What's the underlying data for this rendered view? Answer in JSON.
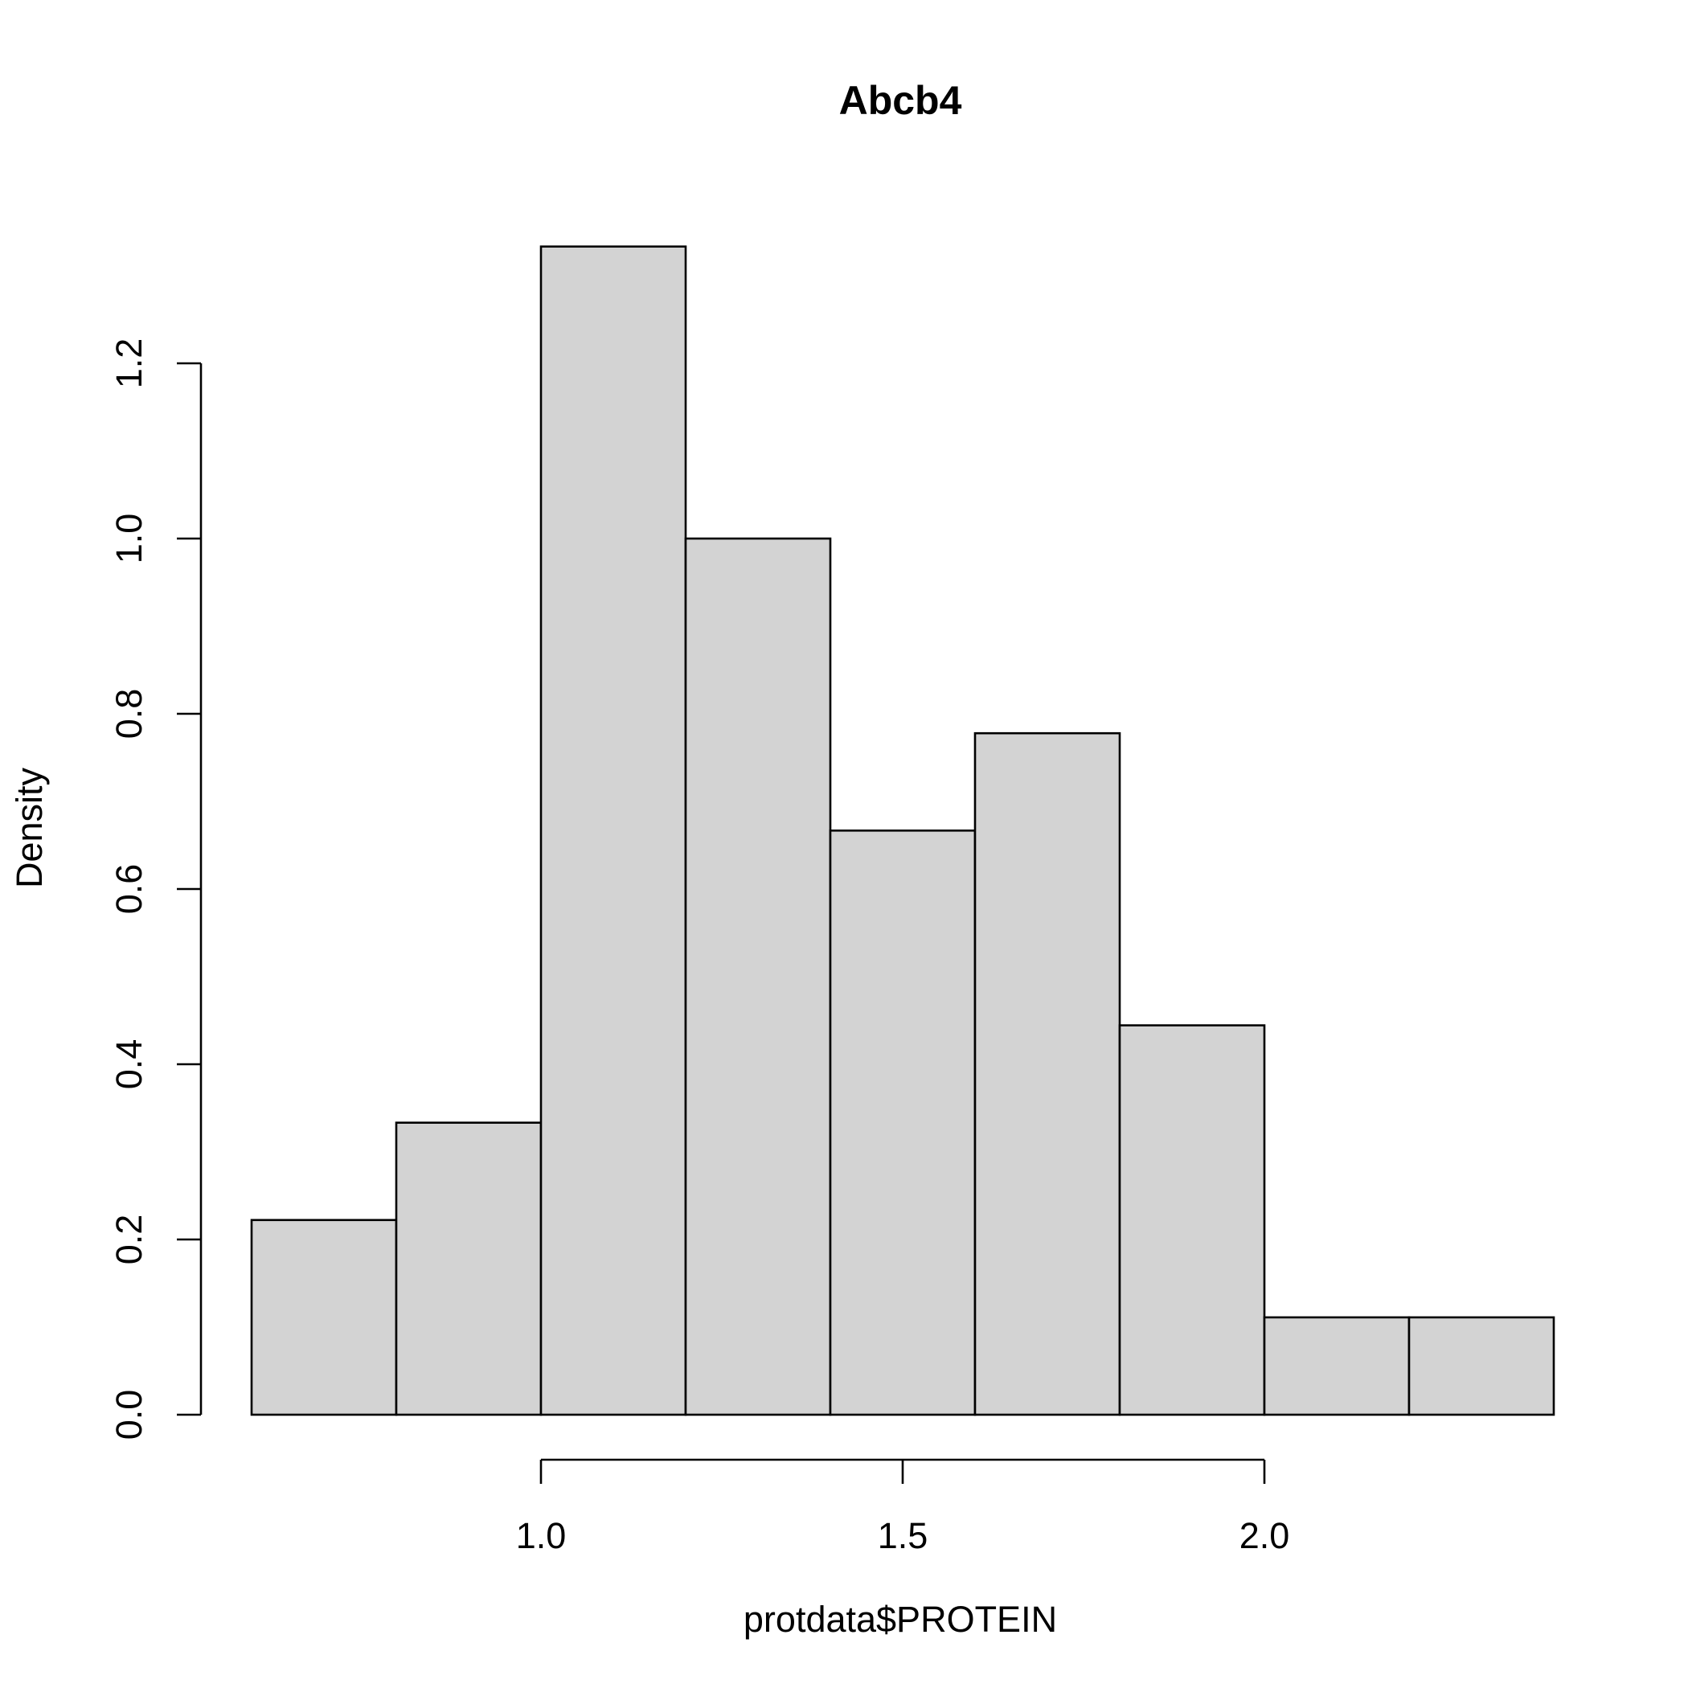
{
  "chart_data": {
    "type": "bar",
    "title": "Abcb4",
    "xlabel": "protdata$PROTEIN",
    "ylabel": "Density",
    "bin_edges": [
      0.6,
      0.8,
      1.0,
      1.2,
      1.4,
      1.6,
      1.8,
      2.0,
      2.2,
      2.4
    ],
    "values": [
      0.2222,
      0.3333,
      1.3333,
      1.0,
      0.6667,
      0.7778,
      0.4444,
      0.1111,
      0.1111
    ],
    "x_ticks": [
      "1.0",
      "1.5",
      "2.0"
    ],
    "y_ticks": [
      "0.0",
      "0.2",
      "0.4",
      "0.6",
      "0.8",
      "1.0",
      "1.2"
    ],
    "bar_fill": "#d3d3d3",
    "bar_stroke": "#000000",
    "grid": false
  }
}
